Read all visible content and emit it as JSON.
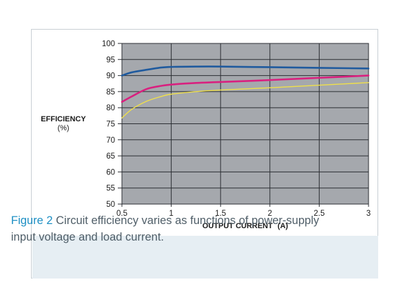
{
  "caption": {
    "figure_label": "Figure 2",
    "text": "Circuit efficiency varies as functions of power-supply input voltage and load current."
  },
  "colors": {
    "plot_background": "#a5a8ad",
    "grid": "#2b2e33",
    "figure_label": "#1d8fc4",
    "caption_background": "#e6eef3"
  },
  "chart_data": {
    "type": "line",
    "title": "",
    "xlabel": "OUTPUT CURRENT",
    "xlabel_unit": "(A)",
    "ylabel": "EFFICIENCY",
    "ylabel_unit": "(%)",
    "xlim": [
      0.5,
      3
    ],
    "ylim": [
      50,
      100
    ],
    "x_ticks": [
      0.5,
      1,
      1.5,
      2,
      2.5,
      3
    ],
    "x_tick_labels": [
      "0.5",
      "1",
      "1.5",
      "2",
      "2.5",
      "3"
    ],
    "y_ticks": [
      50,
      55,
      60,
      65,
      70,
      75,
      80,
      85,
      90,
      95,
      100
    ],
    "y_tick_labels": [
      "50",
      "55",
      "60",
      "65",
      "70",
      "75",
      "80",
      "85",
      "90",
      "95",
      "100"
    ],
    "grid": true,
    "legend": "none",
    "series": [
      {
        "color": "#1f5a9e",
        "x": [
          0.5,
          0.6,
          0.75,
          0.9,
          1.0,
          1.25,
          1.5,
          2.0,
          2.5,
          3.0
        ],
        "y": [
          90.0,
          91.0,
          91.8,
          92.5,
          92.7,
          92.8,
          92.8,
          92.6,
          92.4,
          92.2
        ]
      },
      {
        "color": "#d9207f",
        "x": [
          0.5,
          0.6,
          0.75,
          0.9,
          1.0,
          1.25,
          1.5,
          2.0,
          2.5,
          3.0
        ],
        "y": [
          81.8,
          83.5,
          85.8,
          86.8,
          87.2,
          87.7,
          88.0,
          88.6,
          89.3,
          90.0
        ]
      },
      {
        "color": "#f0e04a",
        "x": [
          0.5,
          0.6,
          0.75,
          0.9,
          1.0,
          1.25,
          1.5,
          2.0,
          2.5,
          3.0
        ],
        "y": [
          76.8,
          79.5,
          82.0,
          83.5,
          84.2,
          85.0,
          85.5,
          86.2,
          87.0,
          87.8
        ]
      }
    ]
  }
}
